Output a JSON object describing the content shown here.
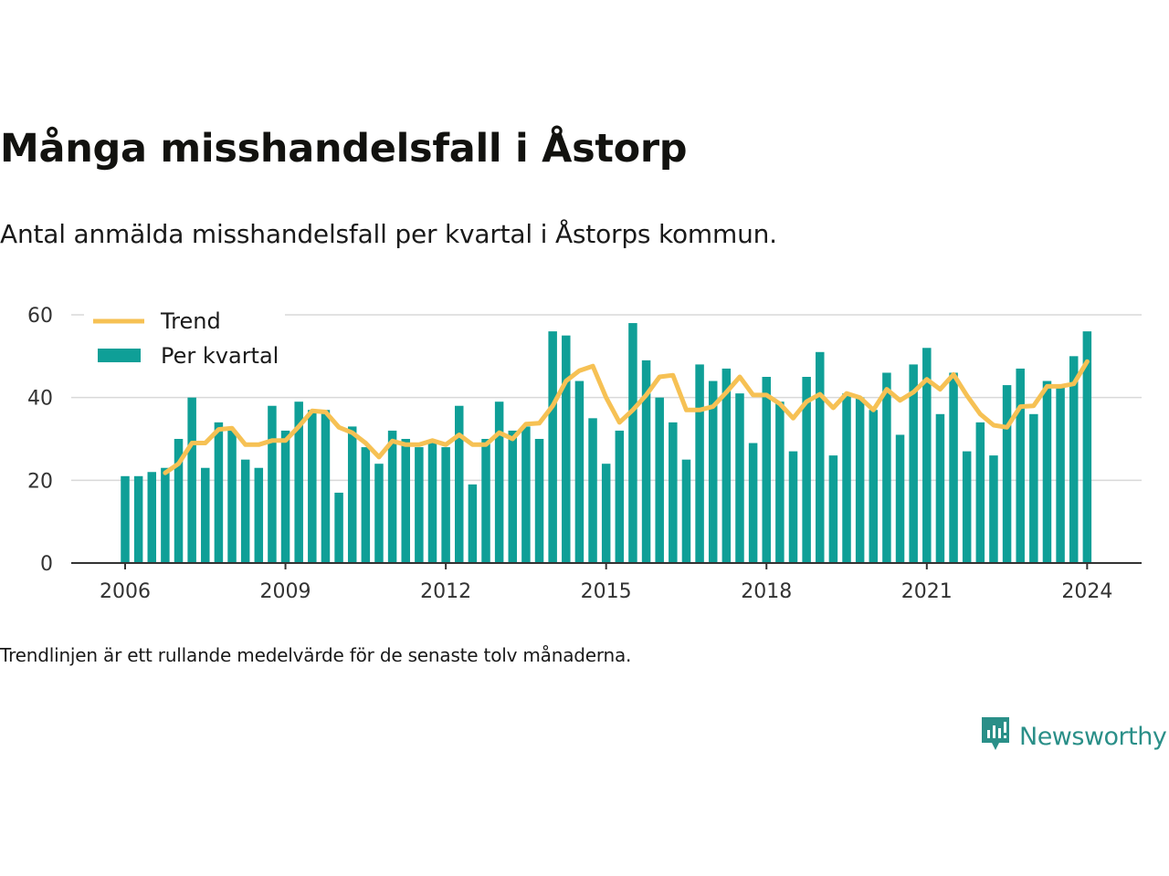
{
  "title": "Många misshandelsfall i Åstorp",
  "subtitle": "Antal anmälda misshandelsfall per kvartal i Åstorps kommun.",
  "footnote": "Trendlinjen är ett rullande medelvärde för de senaste tolv månaderna.",
  "brand": {
    "name": "Newsworthy",
    "icon": "newsworthy-logo-icon"
  },
  "colors": {
    "bars": "#0f9f97",
    "trend": "#f6c154",
    "grid": "#d9d9d9",
    "axis": "#333333"
  },
  "chart_data": {
    "type": "bar",
    "x_ticks": [
      "2006",
      "2009",
      "2012",
      "2015",
      "2018",
      "2021",
      "2024"
    ],
    "y_ticks": [
      "0",
      "20",
      "40",
      "60"
    ],
    "ylim": [
      0,
      60
    ],
    "grid": true,
    "legend_position": "top-left",
    "legend": [
      {
        "key": "trend",
        "label": "Trend"
      },
      {
        "key": "bars",
        "label": "Per kvartal"
      }
    ],
    "start": {
      "year": 2006,
      "quarter": 1
    },
    "series": [
      {
        "name": "Per kvartal",
        "type": "bar",
        "values": [
          21,
          21,
          22,
          23,
          30,
          40,
          23,
          34,
          32,
          25,
          23,
          38,
          32,
          39,
          37,
          37,
          17,
          33,
          28,
          24,
          32,
          30,
          28,
          29,
          28,
          38,
          19,
          30,
          39,
          32,
          33,
          30,
          56,
          55,
          44,
          35,
          24,
          32,
          58,
          49,
          40,
          34,
          25,
          48,
          44,
          47,
          41,
          29,
          45,
          39,
          27,
          45,
          51,
          26,
          41,
          40,
          37,
          46,
          31,
          48,
          52,
          36,
          46,
          27,
          34,
          26,
          43,
          47,
          36,
          44,
          43,
          50,
          56
        ]
      },
      {
        "name": "Trend",
        "type": "line",
        "start_index": 3,
        "values": [
          21.8,
          24,
          29,
          29,
          32.3,
          32.6,
          28.6,
          28.6,
          29.6,
          29.6,
          33,
          36.8,
          36.5,
          32.8,
          31.5,
          29,
          25.6,
          29.5,
          28.6,
          28.6,
          29.6,
          28.6,
          31,
          28.6,
          28.6,
          31.5,
          30,
          33.6,
          33.8,
          38,
          44,
          46.5,
          47.6,
          40,
          34,
          37,
          40.6,
          45,
          45.4,
          37,
          37,
          37.8,
          41.3,
          45,
          40.6,
          40.6,
          38.5,
          35,
          39,
          40.8,
          37.5,
          41,
          40,
          37,
          42,
          39.3,
          41.3,
          44.4,
          42,
          45.6,
          40.5,
          36,
          33.3,
          32.8,
          37.8,
          38,
          42.7,
          42.7,
          43.3,
          48.7
        ]
      }
    ]
  }
}
